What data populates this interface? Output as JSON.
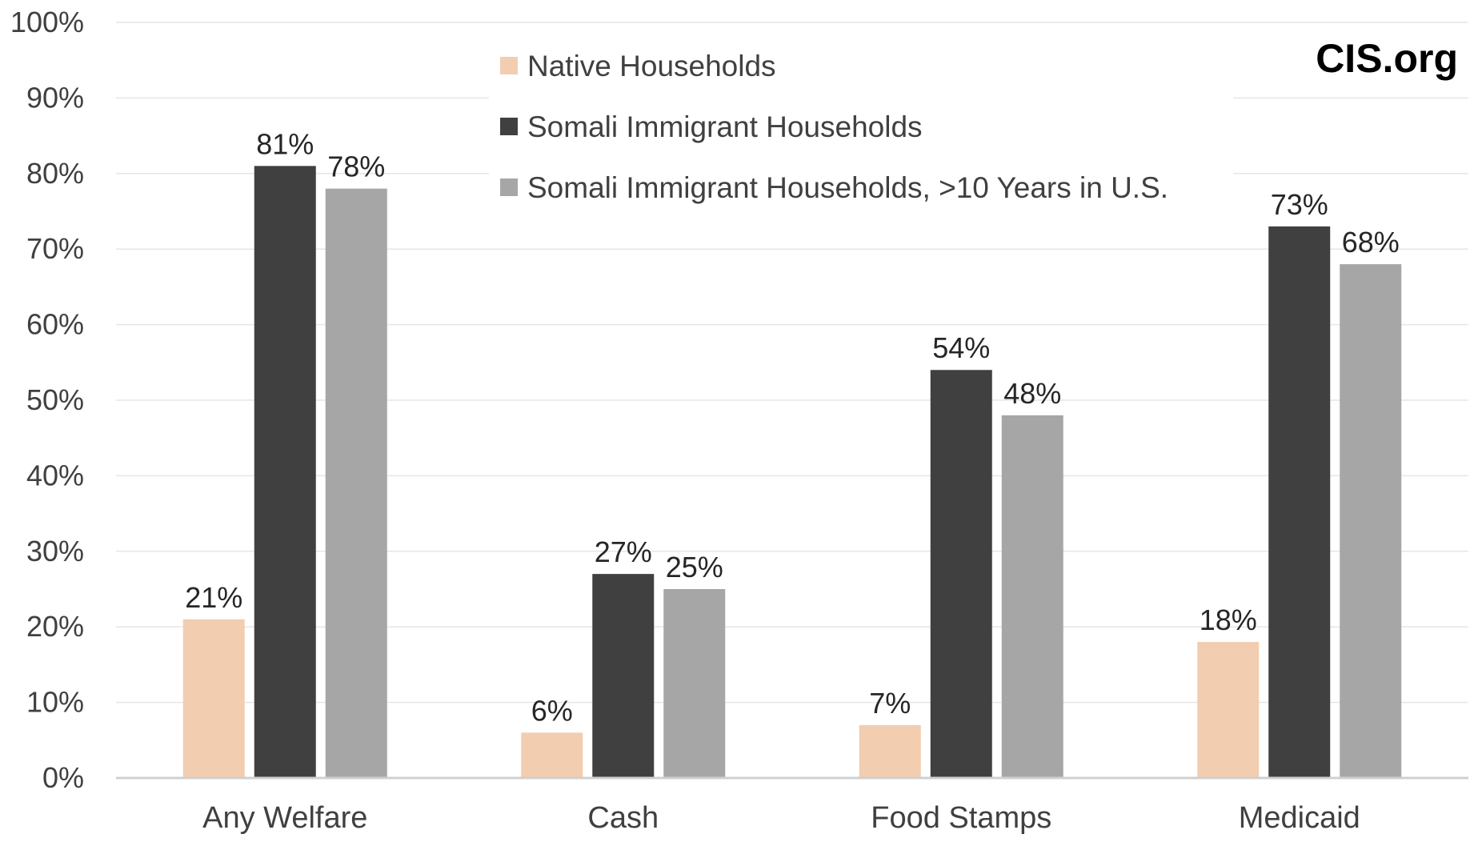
{
  "chart_data": {
    "type": "bar",
    "title": "",
    "xlabel": "",
    "ylabel": "",
    "ylim": [
      0,
      100
    ],
    "ytick_step": 10,
    "yticks": [
      "0%",
      "10%",
      "20%",
      "30%",
      "40%",
      "50%",
      "60%",
      "70%",
      "80%",
      "90%",
      "100%"
    ],
    "grid": true,
    "legend_position": "top-center",
    "categories": [
      "Any Welfare",
      "Cash",
      "Food Stamps",
      "Medicaid"
    ],
    "series": [
      {
        "name": "Native Households",
        "color": "#f2cdb0",
        "values": [
          21,
          6,
          7,
          18
        ],
        "labels": [
          "21%",
          "6%",
          "7%",
          "18%"
        ]
      },
      {
        "name": "Somali Immigrant Households",
        "color": "#404040",
        "values": [
          81,
          27,
          54,
          73
        ],
        "labels": [
          "81%",
          "27%",
          "54%",
          "73%"
        ]
      },
      {
        "name": "Somali Immigrant Households, >10 Years in U.S.",
        "color": "#a6a6a6",
        "values": [
          78,
          25,
          48,
          68
        ],
        "labels": [
          "78%",
          "25%",
          "48%",
          "68%"
        ]
      }
    ]
  },
  "watermark": "CIS.org",
  "colors": {
    "gridline": "#e6e6e6",
    "axis": "#d0d0d0",
    "text": "#404040"
  }
}
